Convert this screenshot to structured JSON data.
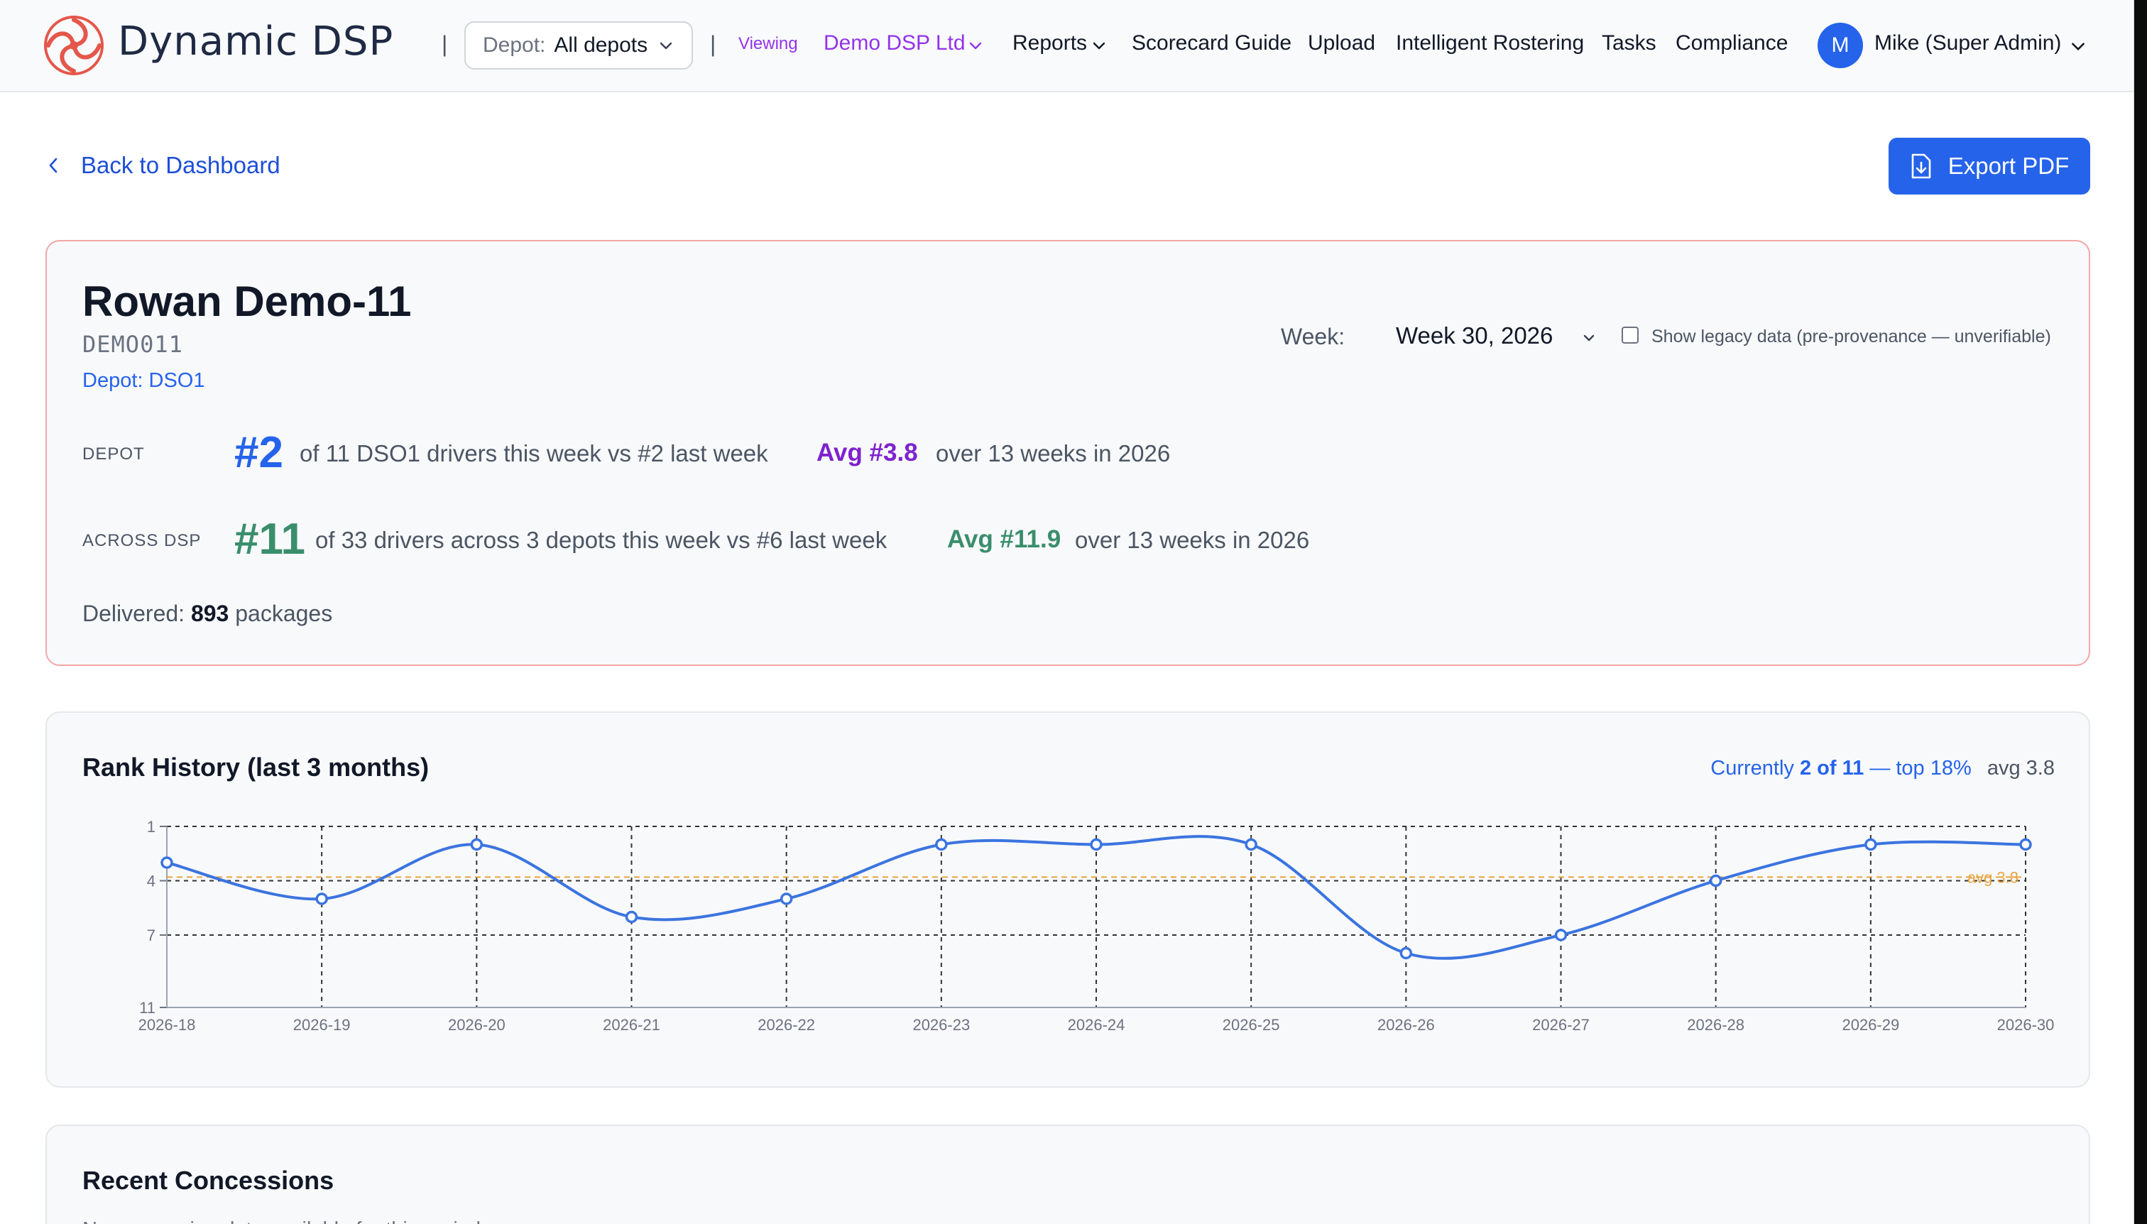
{
  "nav": {
    "brand": "Dynamic DSP",
    "separator": "|",
    "depot_label": "Depot:",
    "depot_value": "All depots",
    "viewing_tag": "Viewing",
    "viewing_org": "Demo DSP Ltd",
    "links": {
      "reports": "Reports",
      "scorecard_guide": "Scorecard Guide",
      "upload": "Upload",
      "intelligent_rostering": "Intelligent Rostering",
      "tasks": "Tasks",
      "compliance": "Compliance"
    },
    "user_initial": "M",
    "user_name": "Mike (Super Admin)"
  },
  "toolbar": {
    "back_label": "Back to Dashboard",
    "export_label": "Export PDF"
  },
  "driver": {
    "name": "Rowan Demo-11",
    "id": "DEMO011",
    "depot": "Depot: DSO1",
    "week_label": "Week:",
    "week_value": "Week 30, 2026",
    "legacy_label": "Show legacy data (pre-provenance — unverifiable)",
    "legacy_checked": false,
    "depot_stat": {
      "label": "DEPOT",
      "rank": "#2",
      "desc": "of 11 DSO1 drivers this week vs #2 last week",
      "avg": "Avg #3.8",
      "avg_desc": "over 13 weeks in 2026"
    },
    "dsp_stat": {
      "label": "ACROSS DSP",
      "rank": "#11",
      "desc": "of 33 drivers across 3 depots this week vs #6 last week",
      "avg": "Avg #11.9",
      "avg_desc": "over 13 weeks in 2026"
    },
    "delivered_label": "Delivered:",
    "delivered_count": "893",
    "delivered_unit": "packages"
  },
  "rank_history": {
    "title": "Rank History (last 3 months)",
    "summary_prefix": "Currently",
    "summary_rank": "2 of 11",
    "summary_suffix": "— top 18%",
    "summary_avg": "avg 3.8"
  },
  "chart_data": {
    "type": "line",
    "x": [
      "2026-18",
      "2026-19",
      "2026-20",
      "2026-21",
      "2026-22",
      "2026-23",
      "2026-24",
      "2026-25",
      "2026-26",
      "2026-27",
      "2026-28",
      "2026-29",
      "2026-30"
    ],
    "series": [
      {
        "values": [
          3,
          5,
          2,
          6,
          5,
          2,
          2,
          2,
          8,
          7,
          4,
          2,
          2
        ]
      }
    ],
    "y_ticks": [
      "1",
      "4",
      "7",
      "11"
    ],
    "ylim": [
      11,
      1
    ],
    "y_inverted": true,
    "reference_line": {
      "value": 3.8,
      "label": "avg 3.8"
    },
    "grid": true,
    "colors": {
      "line": "#3b74e0",
      "reference": "#e8a33d",
      "grid": "#333333"
    }
  },
  "concessions": {
    "title": "Recent Concessions",
    "empty_text": "No concession data available for this period."
  },
  "colors": {
    "primary": "#2563eb",
    "purple": "#7e22ce",
    "green": "#3a8e6c",
    "card_border_alert": "#f2a7a7"
  }
}
